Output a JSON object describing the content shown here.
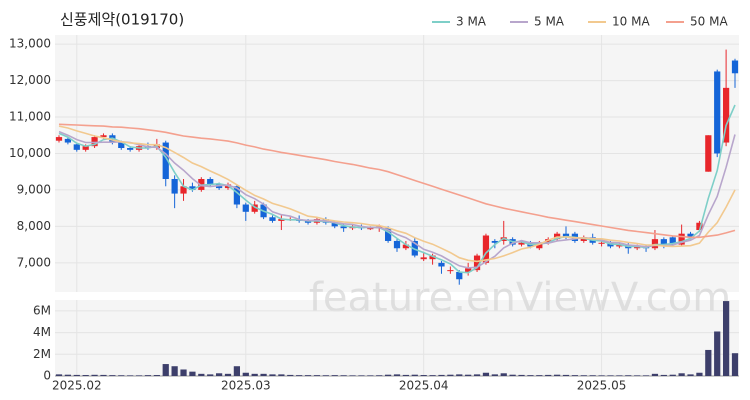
{
  "chart_data": [
    {
      "type": "candlestick",
      "title": "신풍제약(019170)",
      "categories": [
        null,
        null,
        "2025.02",
        null,
        null,
        null,
        null,
        null,
        null,
        null,
        null,
        null,
        null,
        null,
        null,
        null,
        null,
        null,
        null,
        null,
        null,
        "2025.03",
        null,
        null,
        null,
        null,
        null,
        null,
        null,
        null,
        null,
        null,
        null,
        null,
        null,
        null,
        null,
        null,
        null,
        null,
        null,
        "2025.04",
        null,
        null,
        null,
        null,
        null,
        null,
        null,
        null,
        null,
        null,
        null,
        null,
        null,
        null,
        null,
        null,
        null,
        null,
        null,
        "2025.05",
        null,
        null,
        null,
        null,
        null,
        null,
        null,
        null,
        null,
        null,
        null,
        null,
        null,
        null,
        null
      ],
      "open": [
        10350,
        10400,
        10250,
        10100,
        10200,
        10450,
        10500,
        10300,
        10150,
        10100,
        10200,
        10150,
        10300,
        9300,
        8900,
        9100,
        9000,
        9300,
        9150,
        9050,
        9100,
        8600,
        8400,
        8600,
        8250,
        8150,
        8200,
        8200,
        8150,
        8100,
        8200,
        8100,
        8000,
        7950,
        8000,
        7950,
        7950,
        7950,
        7600,
        7400,
        7600,
        7100,
        7100,
        7000,
        6800,
        6750,
        6750,
        6800,
        7000,
        7600,
        7600,
        7650,
        7500,
        7550,
        7400,
        7550,
        7650,
        7800,
        7800,
        7600,
        7700,
        7550,
        7550,
        7450,
        7500,
        7400,
        7450,
        7400,
        7650,
        7700,
        7500,
        7800,
        7900,
        9500,
        12250,
        10300,
        12550
      ],
      "high": [
        10500,
        10450,
        10300,
        10250,
        10500,
        10550,
        10550,
        10350,
        10200,
        10250,
        10300,
        10400,
        10350,
        9400,
        9300,
        9200,
        9350,
        9350,
        9200,
        9200,
        9150,
        8650,
        8700,
        8650,
        8300,
        8300,
        8250,
        8300,
        8200,
        8250,
        8250,
        8150,
        8050,
        8050,
        8050,
        8000,
        8050,
        8000,
        7650,
        7600,
        7700,
        7300,
        7250,
        7050,
        6900,
        6800,
        7000,
        7250,
        7800,
        7650,
        8150,
        7700,
        7600,
        7600,
        7600,
        7700,
        7850,
        8000,
        7850,
        7750,
        7800,
        7600,
        7600,
        7550,
        7550,
        7500,
        7500,
        7900,
        7700,
        7750,
        8050,
        7850,
        8150,
        10500,
        12300,
        12850,
        12600
      ],
      "low": [
        10300,
        10250,
        10050,
        10050,
        10150,
        10400,
        10250,
        10100,
        10050,
        10050,
        10100,
        10100,
        9100,
        8500,
        8700,
        8950,
        8950,
        9100,
        9000,
        9000,
        8500,
        8150,
        8350,
        8200,
        8100,
        7900,
        8150,
        8100,
        8050,
        8050,
        8050,
        7950,
        7850,
        7900,
        7900,
        7900,
        7850,
        7550,
        7300,
        7350,
        7150,
        7050,
        6950,
        6700,
        6700,
        6400,
        6650,
        6750,
        6950,
        7400,
        7500,
        7450,
        7450,
        7400,
        7350,
        7500,
        7600,
        7650,
        7550,
        7550,
        7500,
        7450,
        7400,
        7400,
        7250,
        7350,
        7300,
        7350,
        7400,
        7450,
        7450,
        7650,
        7850,
        9500,
        9900,
        10200,
        11800
      ],
      "close": [
        10450,
        10300,
        10100,
        10200,
        10450,
        10500,
        10300,
        10150,
        10100,
        10200,
        10150,
        10250,
        9300,
        8900,
        9100,
        9000,
        9300,
        9150,
        9050,
        9150,
        8600,
        8400,
        8600,
        8250,
        8150,
        8200,
        8200,
        8150,
        8100,
        8200,
        8100,
        8000,
        7950,
        8000,
        7950,
        7950,
        8000,
        7600,
        7400,
        7500,
        7200,
        7150,
        7200,
        6900,
        6800,
        6550,
        6850,
        7200,
        7750,
        7550,
        7700,
        7500,
        7550,
        7450,
        7550,
        7650,
        7800,
        7700,
        7600,
        7700,
        7550,
        7550,
        7450,
        7500,
        7400,
        7450,
        7400,
        7650,
        7450,
        7500,
        7800,
        7700,
        8100,
        10500,
        10000,
        11800,
        12200
      ],
      "up_color": "#e8262b",
      "down_color": "#1565d8",
      "ylim": [
        6200,
        13250
      ],
      "yticks": [
        {
          "value": 7000,
          "label": "7,000"
        },
        {
          "value": 8000,
          "label": "8,000"
        },
        {
          "value": 9000,
          "label": "9,000"
        },
        {
          "value": 10000,
          "label": "10,000"
        },
        {
          "value": 11000,
          "label": "11,000"
        },
        {
          "value": 12000,
          "label": "12,000"
        },
        {
          "value": 13000,
          "label": "13,000"
        }
      ],
      "grid": true,
      "legend": "top-right",
      "series": [
        {
          "name": "3 MA",
          "color": "#7ecfc8",
          "values": [
            10550,
            10450,
            10280,
            10200,
            10250,
            10380,
            10420,
            10320,
            10180,
            10150,
            10150,
            10200,
            9900,
            9480,
            9100,
            9000,
            9130,
            9150,
            9170,
            9120,
            8930,
            8720,
            8530,
            8420,
            8330,
            8200,
            8180,
            8180,
            8150,
            8150,
            8130,
            8100,
            8020,
            7980,
            7970,
            7970,
            7970,
            7850,
            7670,
            7500,
            7370,
            7280,
            7180,
            7080,
            6970,
            6750,
            6730,
            6870,
            7270,
            7500,
            7670,
            7580,
            7580,
            7500,
            7520,
            7550,
            7670,
            7720,
            7700,
            7670,
            7620,
            7600,
            7520,
            7500,
            7450,
            7450,
            7420,
            7500,
            7500,
            7530,
            7580,
            7670,
            7870,
            8770,
            9530,
            10770,
            11330
          ]
        },
        {
          "name": "5 MA",
          "color": "#b8a6cc",
          "values": [
            10600,
            10500,
            10380,
            10300,
            10300,
            10310,
            10310,
            10320,
            10300,
            10240,
            10180,
            10170,
            9990,
            9740,
            9540,
            9310,
            9120,
            9090,
            9120,
            9130,
            9050,
            8870,
            8760,
            8610,
            8400,
            8320,
            8280,
            8190,
            8160,
            8170,
            8150,
            8110,
            8070,
            8050,
            8000,
            7970,
            7970,
            7900,
            7780,
            7690,
            7540,
            7370,
            7290,
            7190,
            7050,
            6920,
            6860,
            6880,
            7030,
            7180,
            7410,
            7540,
            7610,
            7550,
            7550,
            7540,
            7600,
            7630,
            7660,
            7690,
            7670,
            7620,
            7560,
            7550,
            7490,
            7470,
            7440,
            7480,
            7470,
            7490,
            7560,
            7620,
            7750,
            8320,
            8820,
            9620,
            10520
          ]
        },
        {
          "name": "10 MA",
          "color": "#f2c98f",
          "values": [
            10750,
            10700,
            10620,
            10550,
            10480,
            10430,
            10370,
            10320,
            10290,
            10270,
            10240,
            10240,
            10160,
            10030,
            9890,
            9740,
            9640,
            9520,
            9410,
            9290,
            9140,
            8990,
            8850,
            8750,
            8630,
            8560,
            8480,
            8380,
            8280,
            8250,
            8190,
            8150,
            8120,
            8100,
            8080,
            8040,
            8020,
            7960,
            7880,
            7810,
            7690,
            7590,
            7510,
            7400,
            7280,
            7140,
            7070,
            7040,
            7080,
            7120,
            7190,
            7280,
            7380,
            7430,
            7510,
            7620,
            7710,
            7710,
            7690,
            7680,
            7660,
            7660,
            7620,
            7600,
            7560,
            7530,
            7490,
            7490,
            7460,
            7450,
            7460,
            7470,
            7540,
            7840,
            8100,
            8530,
            9000
          ]
        },
        {
          "name": "50 MA",
          "color": "#f4a08e",
          "values": [
            10800,
            10790,
            10780,
            10770,
            10760,
            10750,
            10730,
            10720,
            10700,
            10680,
            10650,
            10620,
            10580,
            10530,
            10480,
            10450,
            10420,
            10400,
            10370,
            10340,
            10290,
            10230,
            10180,
            10120,
            10080,
            10030,
            9990,
            9950,
            9910,
            9870,
            9830,
            9780,
            9740,
            9700,
            9650,
            9600,
            9560,
            9500,
            9420,
            9340,
            9260,
            9180,
            9100,
            9020,
            8940,
            8860,
            8780,
            8700,
            8620,
            8560,
            8500,
            8450,
            8400,
            8350,
            8300,
            8250,
            8210,
            8170,
            8130,
            8090,
            8050,
            8010,
            7970,
            7930,
            7890,
            7860,
            7830,
            7800,
            7770,
            7740,
            7720,
            7700,
            7700,
            7730,
            7760,
            7820,
            7890
          ]
        }
      ],
      "watermark": "feature.enViewV.com"
    },
    {
      "type": "bar",
      "color": "#3d3f6b",
      "values": [
        150000,
        120000,
        100000,
        90000,
        110000,
        100000,
        80000,
        70000,
        60000,
        60000,
        80000,
        90000,
        1100000,
        900000,
        600000,
        400000,
        200000,
        150000,
        250000,
        200000,
        900000,
        300000,
        200000,
        200000,
        150000,
        150000,
        100000,
        80000,
        80000,
        80000,
        70000,
        80000,
        70000,
        60000,
        60000,
        60000,
        70000,
        120000,
        150000,
        100000,
        120000,
        90000,
        80000,
        100000,
        120000,
        150000,
        120000,
        150000,
        300000,
        150000,
        250000,
        120000,
        100000,
        80000,
        80000,
        100000,
        120000,
        100000,
        80000,
        70000,
        70000,
        60000,
        60000,
        60000,
        70000,
        60000,
        60000,
        200000,
        100000,
        120000,
        250000,
        150000,
        300000,
        2400000,
        4100000,
        6900000,
        2100000
      ],
      "ylim": [
        0,
        7000000
      ],
      "yticks": [
        {
          "value": 0,
          "label": "0"
        },
        {
          "value": 2000000,
          "label": "2M"
        },
        {
          "value": 4000000,
          "label": "4M"
        },
        {
          "value": 6000000,
          "label": "6M"
        }
      ],
      "grid": true
    }
  ]
}
